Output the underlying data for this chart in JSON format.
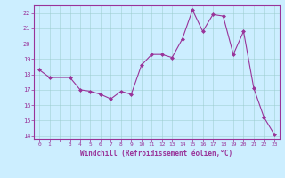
{
  "x": [
    0,
    1,
    3,
    4,
    5,
    6,
    7,
    8,
    9,
    10,
    11,
    12,
    13,
    14,
    15,
    16,
    17,
    18,
    19,
    20,
    21,
    22,
    23
  ],
  "y": [
    18.3,
    17.8,
    17.8,
    17.0,
    16.9,
    16.7,
    16.4,
    16.9,
    16.7,
    18.6,
    19.3,
    19.3,
    19.1,
    20.3,
    22.2,
    20.8,
    21.9,
    21.8,
    19.3,
    20.8,
    17.1,
    15.2,
    14.1
  ],
  "line_color": "#993399",
  "marker": "D",
  "marker_size": 2,
  "bg_color": "#cceeff",
  "grid_color": "#aaddee",
  "xlabel": "Windchill (Refroidissement éolien,°C)",
  "xlabel_color": "#993399",
  "tick_color": "#993399",
  "ylim": [
    13.8,
    22.5
  ],
  "yticks": [
    14,
    15,
    16,
    17,
    18,
    19,
    20,
    21,
    22
  ],
  "xtick_labels": [
    "0",
    "1",
    "",
    "3",
    "4",
    "5",
    "6",
    "7",
    "8",
    "9",
    "10",
    "11",
    "12",
    "13",
    "14",
    "15",
    "16",
    "17",
    "18",
    "19",
    "20",
    "21",
    "22",
    "23"
  ],
  "xticks": [
    0,
    1,
    2,
    3,
    4,
    5,
    6,
    7,
    8,
    9,
    10,
    11,
    12,
    13,
    14,
    15,
    16,
    17,
    18,
    19,
    20,
    21,
    22,
    23
  ],
  "xlim": [
    -0.5,
    23.5
  ]
}
